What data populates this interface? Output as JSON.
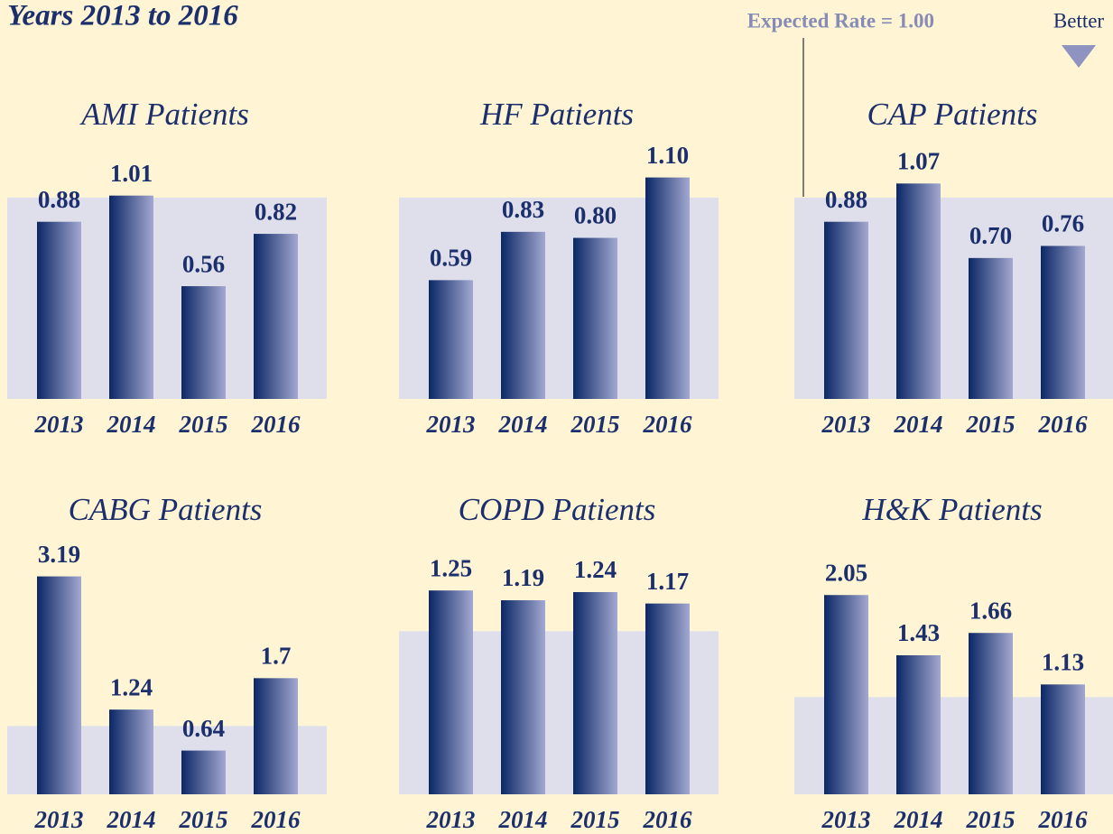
{
  "header": {
    "title": "Years 2013 to 2016"
  },
  "expected_rate": {
    "label": "Expected Rate = 1.00",
    "value": 1
  },
  "better": "Better",
  "chart_data": [
    {
      "type": "bar",
      "title": "AMI Patients",
      "categories": [
        "2013",
        "2014",
        "2015",
        "2016"
      ],
      "values": [
        0.88,
        1.01,
        0.56,
        0.82
      ],
      "value_labels": [
        "0.88",
        "1.01",
        "0.56",
        "0.82"
      ],
      "ylim": [
        0,
        1.3
      ]
    },
    {
      "type": "bar",
      "title": "HF Patients",
      "categories": [
        "2013",
        "2014",
        "2015",
        "2016"
      ],
      "values": [
        0.59,
        0.83,
        0.8,
        1.1
      ],
      "value_labels": [
        "0.59",
        "0.83",
        "0.80",
        "1.10"
      ],
      "ylim": [
        0,
        1.3
      ]
    },
    {
      "type": "bar",
      "title": "CAP Patients",
      "categories": [
        "2013",
        "2014",
        "2015",
        "2016"
      ],
      "values": [
        0.88,
        1.07,
        0.7,
        0.76
      ],
      "value_labels": [
        "0.88",
        "1.07",
        "0.70",
        "0.76"
      ],
      "ylim": [
        0,
        1.3
      ]
    },
    {
      "type": "bar",
      "title": "CABG Patients",
      "categories": [
        "2013",
        "2014",
        "2015",
        "2016"
      ],
      "values": [
        3.19,
        1.24,
        0.64,
        1.7
      ],
      "value_labels": [
        "3.19",
        "1.24",
        "0.64",
        "1.7"
      ],
      "ylim": [
        0,
        3.7
      ]
    },
    {
      "type": "bar",
      "title": "COPD Patients",
      "categories": [
        "2013",
        "2014",
        "2015",
        "2016"
      ],
      "values": [
        1.25,
        1.19,
        1.24,
        1.17
      ],
      "value_labels": [
        "1.25",
        "1.19",
        "1.24",
        "1.17"
      ],
      "ylim": [
        0,
        1.55
      ]
    },
    {
      "type": "bar",
      "title": "H&K Patients",
      "categories": [
        "2013",
        "2014",
        "2015",
        "2016"
      ],
      "values": [
        2.05,
        1.43,
        1.66,
        1.13
      ],
      "value_labels": [
        "2.05",
        "1.43",
        "1.66",
        "1.13"
      ],
      "ylim": [
        0,
        2.6
      ]
    }
  ]
}
